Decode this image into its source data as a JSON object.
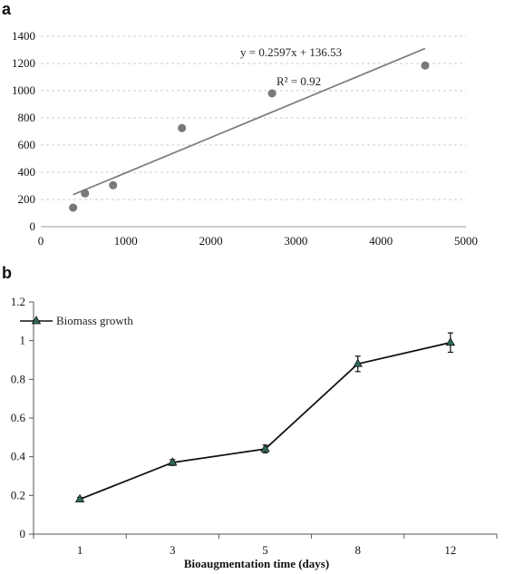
{
  "chart_data": [
    {
      "panel": "a",
      "type": "scatter",
      "xlim": [
        0,
        5000
      ],
      "ylim": [
        0,
        1400
      ],
      "x_ticks": [
        0,
        1000,
        2000,
        3000,
        4000,
        5000
      ],
      "y_ticks": [
        0,
        200,
        400,
        600,
        800,
        1000,
        1200,
        1400
      ],
      "grid": "horizontal dashed",
      "points": [
        {
          "x": 380,
          "y": 140
        },
        {
          "x": 520,
          "y": 245
        },
        {
          "x": 850,
          "y": 305
        },
        {
          "x": 1660,
          "y": 725
        },
        {
          "x": 2720,
          "y": 980
        },
        {
          "x": 4520,
          "y": 1185
        }
      ],
      "trendline": {
        "slope": 0.2597,
        "intercept": 136.53,
        "x_start": 380,
        "x_end": 4520
      },
      "equation_label": "y = 0.2597x + 136.53",
      "r2_label": "R² = 0.92",
      "colors": {
        "points": "#7a7a7a",
        "line": "#808080",
        "grid": "#cccccc"
      }
    },
    {
      "panel": "b",
      "type": "line",
      "categories": [
        "1",
        "3",
        "5",
        "8",
        "12"
      ],
      "series": [
        {
          "name": "Biomass growth",
          "values": [
            0.18,
            0.37,
            0.44,
            0.88,
            0.99
          ],
          "errors": [
            0.01,
            0.015,
            0.02,
            0.04,
            0.05
          ]
        }
      ],
      "ylim": [
        0,
        1.2
      ],
      "y_ticks": [
        "0",
        "0.2",
        "0.4",
        "0.6",
        "0.8",
        "1",
        "1.2"
      ],
      "xlabel": "Bioaugmentation time (days)",
      "legend_position": "top-left",
      "colors": {
        "line": "#111111",
        "marker": "#2e6b5e"
      }
    }
  ]
}
